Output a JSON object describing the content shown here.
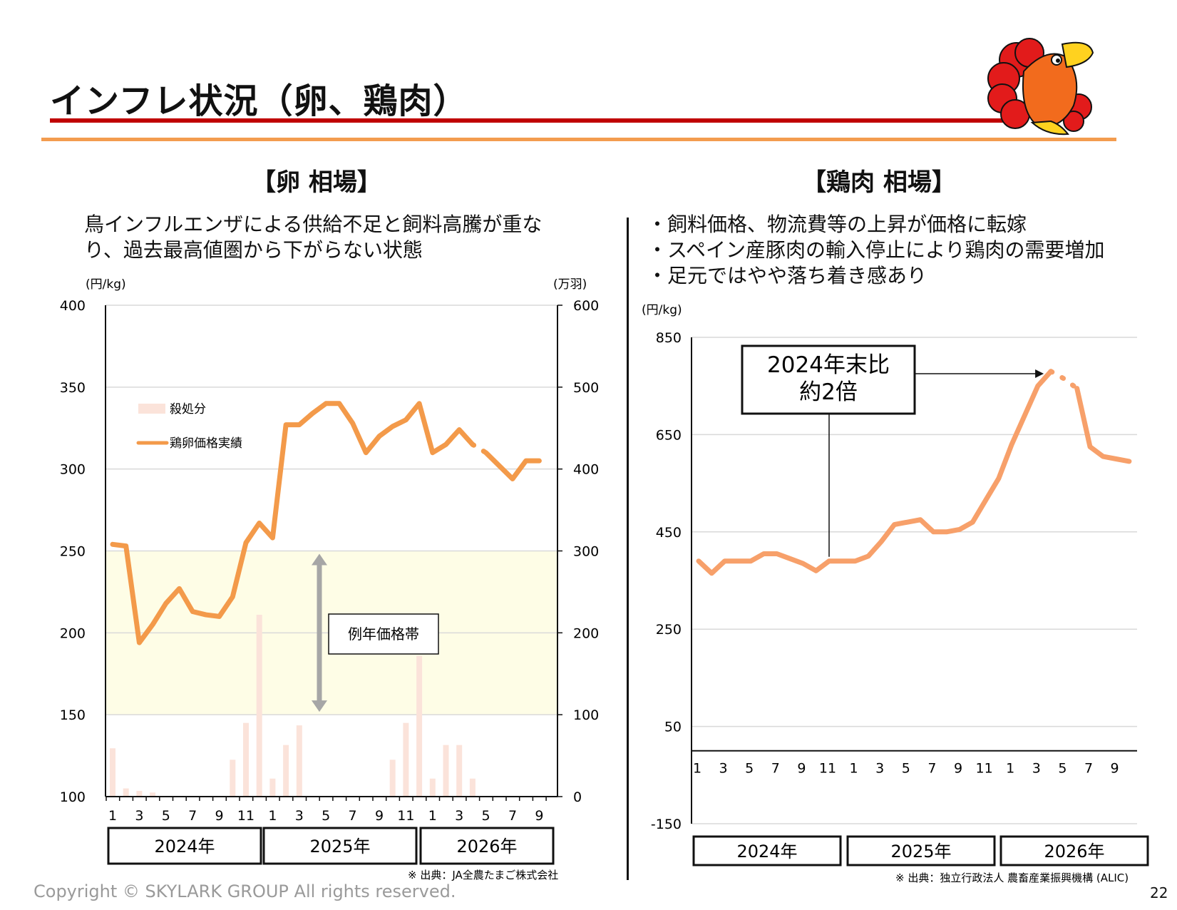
{
  "title": "インフレ状況（卵、鶏肉）",
  "copyright": "Copyright © SKYLARK GROUP All rights reserved.",
  "page_number": "22",
  "egg": {
    "heading": "【卵 相場】",
    "description": [
      "鳥インフルエンザによる供給不足と飼料高騰が重な",
      "り、過去最高値圏から下がらない状態"
    ],
    "left_unit": "(円/kg)",
    "right_unit": "(万羽)",
    "band_label": "例年価格帯",
    "legend_bar": "殺処分",
    "legend_line": "鶏卵価格実績",
    "source": "※ 出典：JA全農たまご株式会社",
    "year_labels": [
      "2024年",
      "2025年",
      "2026年"
    ]
  },
  "chicken": {
    "heading": "【鶏肉 相場】",
    "bullets": [
      "・飼料価格、物流費等の上昇が価格に転嫁",
      "・スペイン産豚肉の輸入停止により鶏肉の需要増加",
      "・足元ではやや落ち着き感あり"
    ],
    "unit": "(円/kg)",
    "callout": [
      "2024年末比",
      "約2倍"
    ],
    "source": "※ 出典：独立行政法人 農畜産業振興機構 (ALIC)",
    "year_labels": [
      "2024年",
      "2025年",
      "2026年"
    ]
  },
  "colors": {
    "line_orange": "#f39a4a",
    "chicken_line": "#f7a06a",
    "bar_pink": "#fbe3da",
    "band_yellow": "#fefde6",
    "title_red": "#c00000",
    "accent_orange": "#f39c4f"
  },
  "chart_data": [
    {
      "type": "line",
      "chart": "egg-price",
      "y_ticks": [
        "100",
        "150",
        "200",
        "250",
        "300",
        "350",
        "400"
      ],
      "y2_ticks": [
        "0",
        "100",
        "200",
        "300",
        "400",
        "500",
        "600"
      ],
      "ylim": [
        100,
        400
      ],
      "y2lim": [
        0,
        600
      ],
      "x_tick_labels": [
        "1",
        "3",
        "5",
        "7",
        "9",
        "11",
        "1",
        "3",
        "5",
        "7",
        "9",
        "11",
        "1",
        "3",
        "5",
        "7",
        "9"
      ],
      "band": [
        150,
        250
      ],
      "series": [
        {
          "name": "鶏卵価格実績",
          "axis": "left",
          "style": "solid",
          "x": [
            1,
            2,
            3,
            4,
            5,
            6,
            7,
            8,
            9,
            10,
            11,
            12,
            13,
            14,
            15,
            16,
            17,
            18,
            19,
            20,
            21,
            22,
            23,
            24,
            25,
            26,
            27,
            28
          ],
          "values": [
            254,
            253,
            194,
            205,
            218,
            227,
            213,
            211,
            210,
            222,
            255,
            267,
            258,
            327,
            327,
            334,
            340,
            340,
            328,
            310,
            320,
            326,
            330,
            340,
            310,
            315,
            324,
            315
          ]
        },
        {
          "name": "forecast",
          "axis": "left",
          "style": "dotted",
          "x": [
            28,
            29
          ],
          "values": [
            315,
            310
          ]
        },
        {
          "name": "forecast-line",
          "axis": "left",
          "style": "solid",
          "x": [
            29,
            30,
            31,
            32,
            33
          ],
          "values": [
            310,
            302,
            294,
            305,
            305
          ]
        },
        {
          "name": "殺処分",
          "axis": "right",
          "type": "bar",
          "x": [
            1,
            2,
            3,
            4,
            5,
            6,
            7,
            8,
            9,
            10,
            11,
            12,
            13,
            14,
            15,
            16,
            17,
            18,
            19,
            20,
            21,
            22,
            23,
            24,
            25,
            26,
            27,
            28
          ],
          "values": [
            59,
            10,
            7,
            5,
            0,
            0,
            0,
            0,
            0,
            45,
            90,
            222,
            22,
            63,
            87,
            0,
            0,
            0,
            0,
            0,
            0,
            45,
            90,
            172,
            22,
            63,
            63,
            22
          ]
        }
      ]
    },
    {
      "type": "line",
      "chart": "chicken-price",
      "y_ticks": [
        "-150",
        "50",
        "250",
        "450",
        "650",
        "850"
      ],
      "ylim": [
        -150,
        850
      ],
      "x_tick_labels": [
        "1",
        "3",
        "5",
        "7",
        "9",
        "11",
        "1",
        "3",
        "5",
        "7",
        "9",
        "11",
        "1",
        "3",
        "5",
        "7",
        "9"
      ],
      "series": [
        {
          "name": "actual",
          "style": "solid",
          "x": [
            1,
            2,
            3,
            4,
            5,
            6,
            7,
            8,
            9,
            10,
            11,
            12,
            13,
            14,
            15,
            16,
            17,
            18,
            19,
            20,
            21,
            22,
            23,
            24,
            25,
            26,
            27,
            28
          ],
          "values": [
            390,
            365,
            390,
            390,
            390,
            405,
            405,
            395,
            385,
            370,
            390,
            390,
            390,
            400,
            430,
            465,
            470,
            475,
            450,
            450,
            455,
            470,
            515,
            560,
            630,
            690,
            750,
            780
          ]
        },
        {
          "name": "forecast-dotted",
          "style": "dotted",
          "x": [
            28,
            29,
            30
          ],
          "values": [
            780,
            765,
            745
          ]
        },
        {
          "name": "forecast-line",
          "style": "solid",
          "x": [
            30,
            31,
            32,
            33,
            34
          ],
          "values": [
            745,
            625,
            605,
            600,
            595
          ]
        }
      ]
    }
  ]
}
